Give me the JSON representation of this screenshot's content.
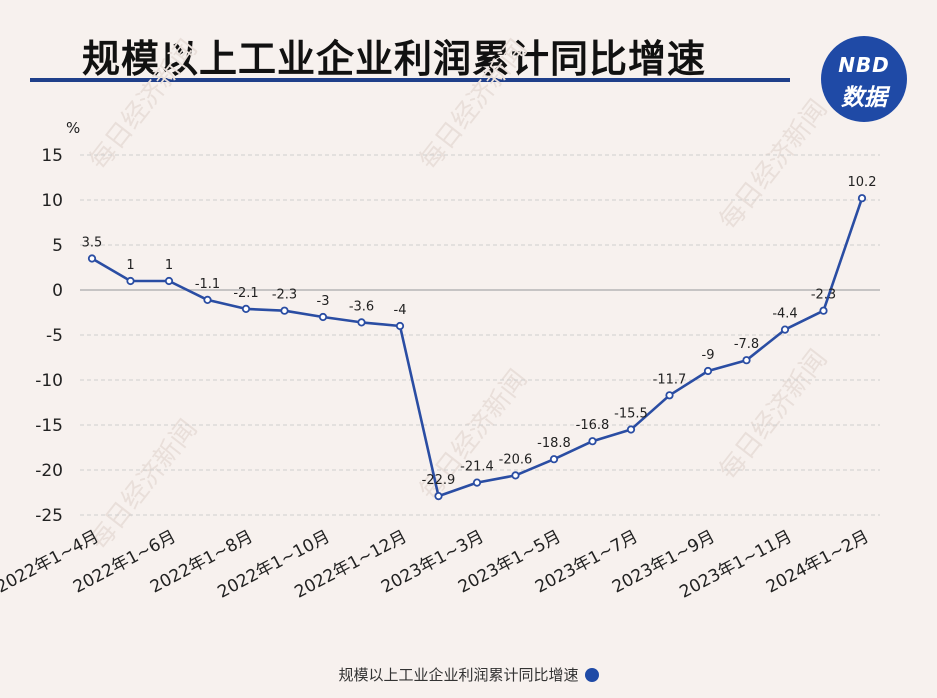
{
  "title": "规模以上工业企业利润累计同比增速",
  "logo": {
    "top": "NBD",
    "bottom": "数据"
  },
  "watermark": "每日经济新闻",
  "colors": {
    "line": "#2a4da3",
    "accent": "#1f4aa6",
    "grid": "#cfcfcf",
    "zero": "#b5b5b5"
  },
  "chart_data": {
    "type": "line",
    "title": "规模以上工业企业利润累计同比增速",
    "ylabel": "%",
    "ylim": [
      -25,
      15
    ],
    "yticks": [
      15,
      10,
      5,
      0,
      -5,
      -10,
      -15,
      -20,
      -25
    ],
    "grid": true,
    "legend_position": "bottom",
    "x_tick_labels": [
      "2022年1~4月",
      "2022年1~6月",
      "2022年1~8月",
      "2022年1~10月",
      "2022年1~12月",
      "2023年1~3月",
      "2023年1~5月",
      "2023年1~7月",
      "2023年1~9月",
      "2023年1~11月",
      "2024年1~2月"
    ],
    "series": [
      {
        "name": "规模以上工业企业利润累计同比增速",
        "values": [
          3.5,
          1,
          1,
          -1.1,
          -2.1,
          -2.3,
          -3,
          -3.6,
          -4,
          -22.9,
          -21.4,
          -20.6,
          -18.8,
          -16.8,
          -15.5,
          -11.7,
          -9,
          -7.8,
          -4.4,
          -2.3,
          10.2
        ],
        "labels": [
          "3.5",
          "1",
          "1",
          "-1.1",
          "-2.1",
          "-2.3",
          "-3",
          "-3.6",
          "-4",
          "-22.9",
          "-21.4",
          "-20.6",
          "-18.8",
          "-16.8",
          "-15.5",
          "-11.7",
          "-9",
          "-7.8",
          "-4.4",
          "-2.3",
          "10.2"
        ]
      }
    ]
  }
}
